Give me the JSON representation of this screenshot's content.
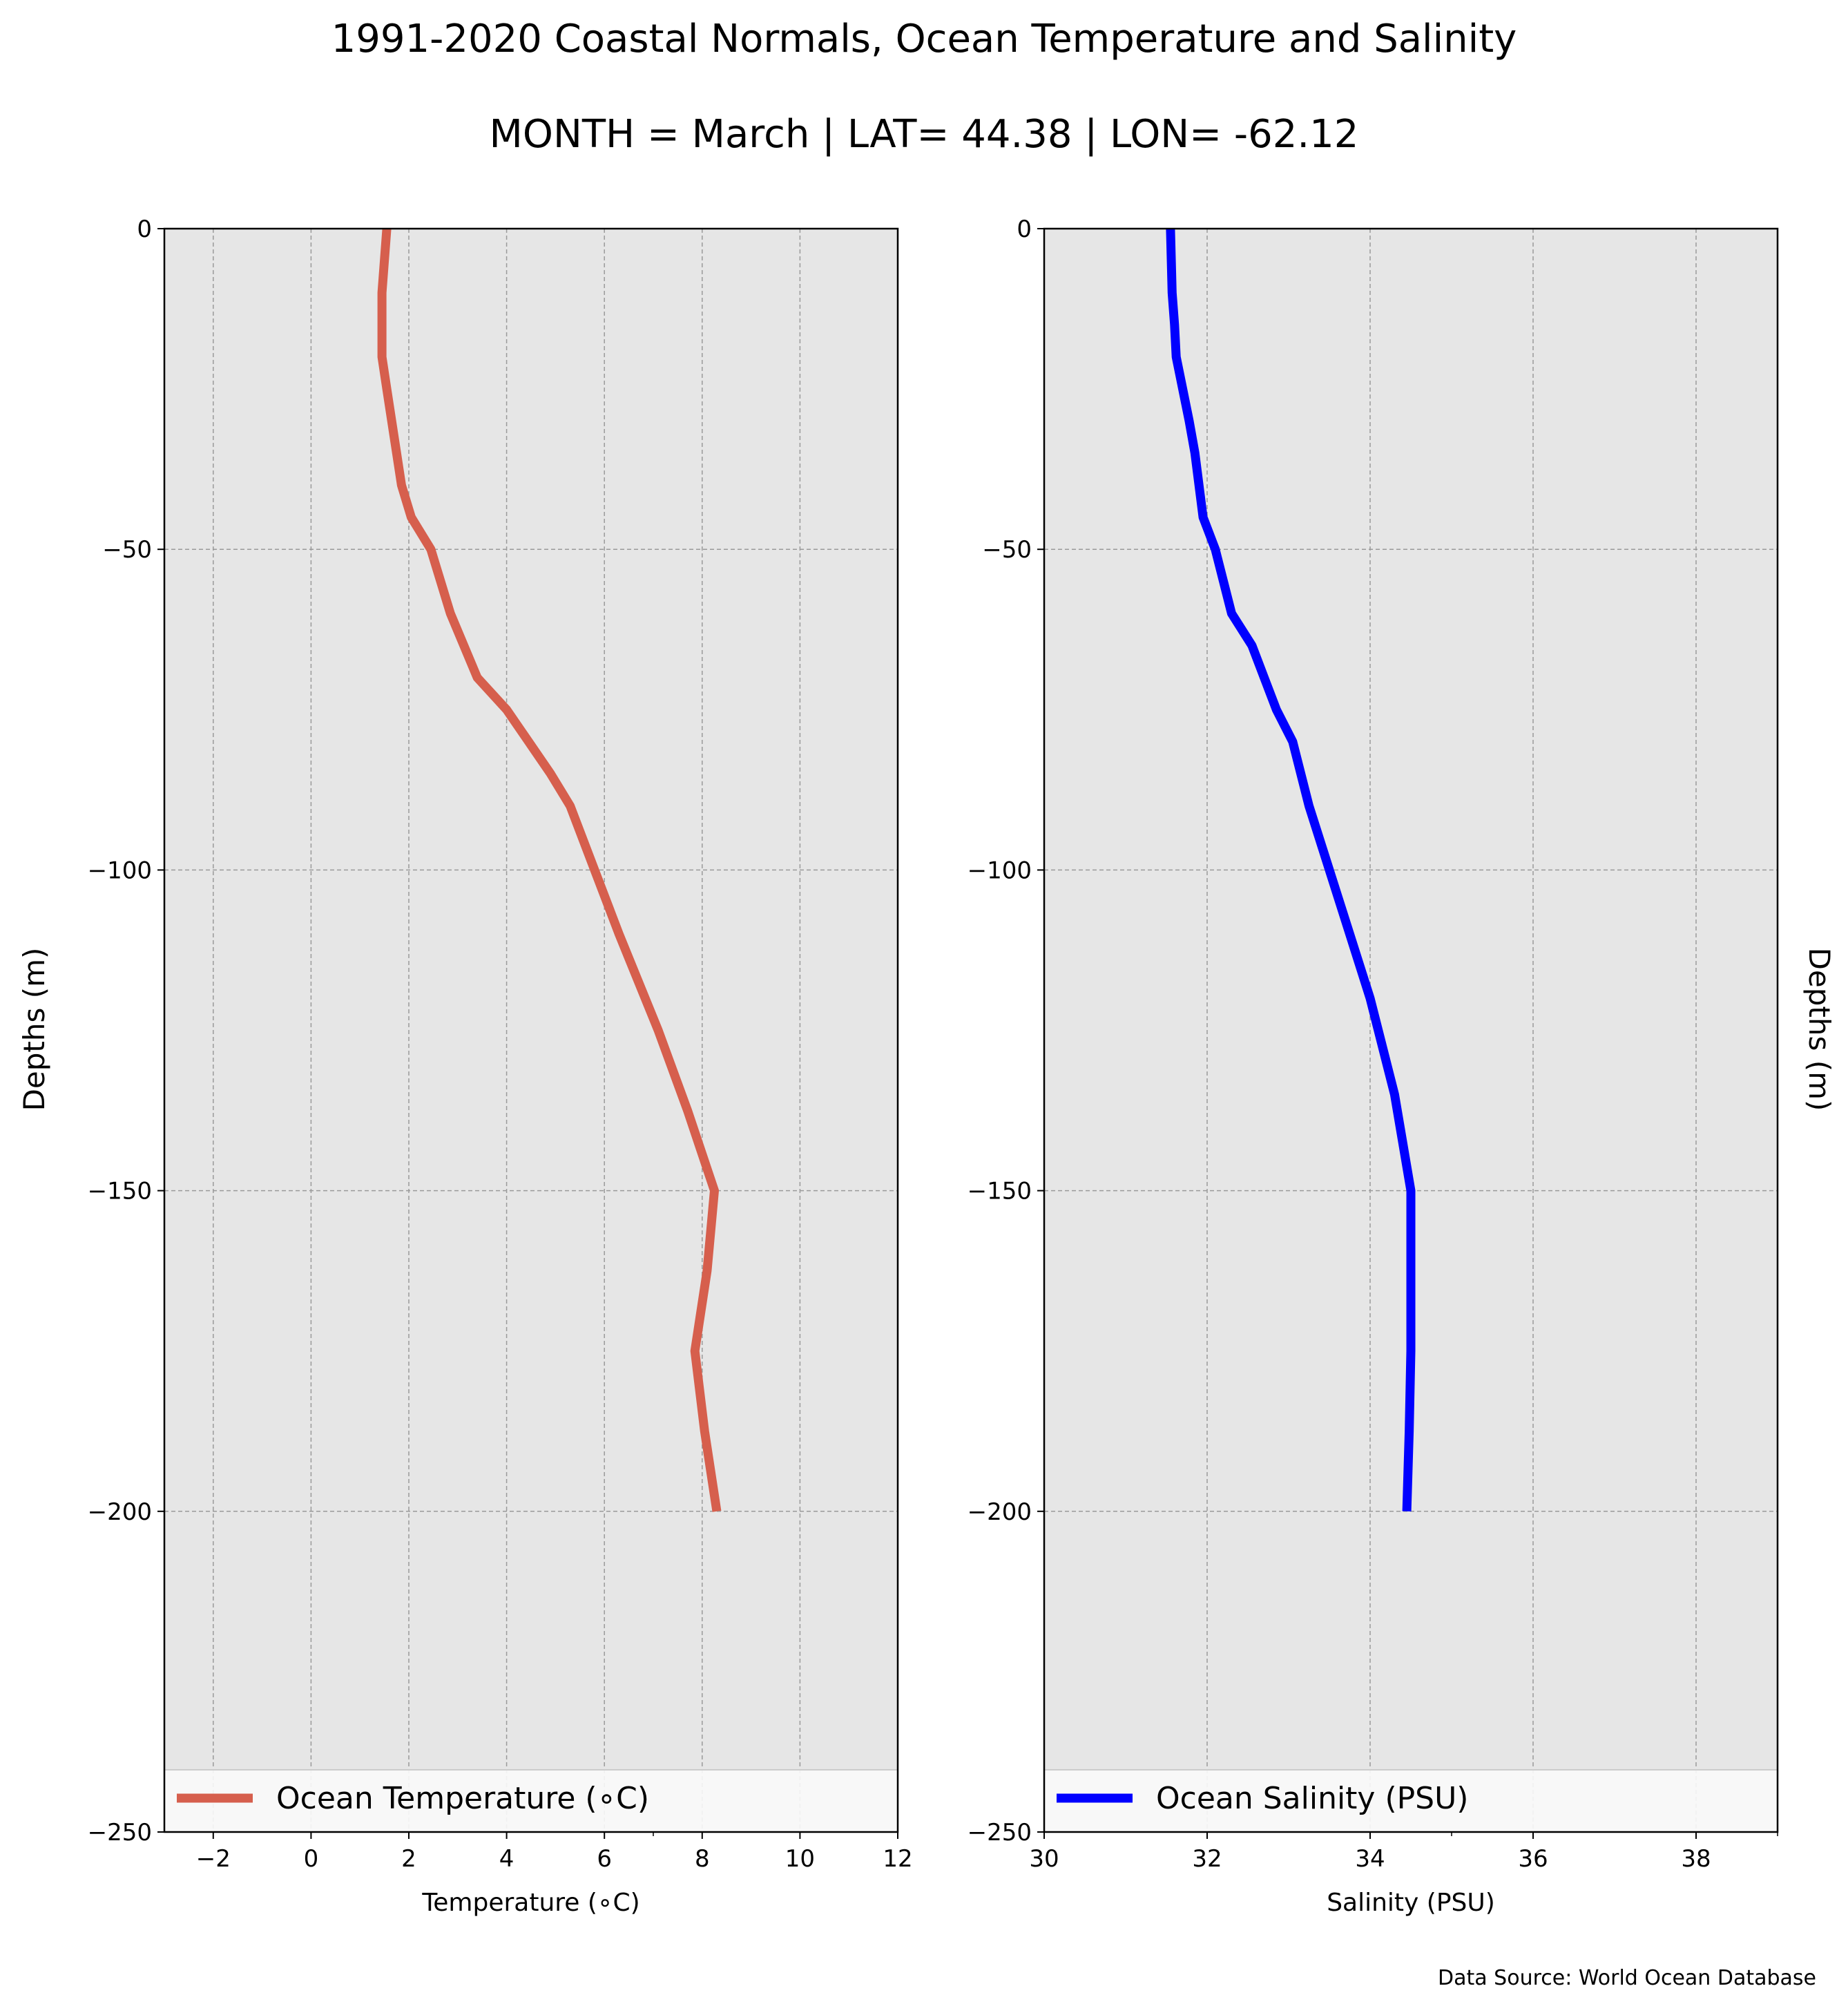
{
  "titles": {
    "line1": "1991-2020 Coastal Normals, Ocean Temperature and Salinity",
    "line2": "MONTH = March | LAT= 44.38 | LON= -62.12"
  },
  "source_note": "Data Source: World Ocean Database",
  "colors": {
    "temperature": "#d65f4d",
    "salinity": "#0000ff",
    "plot_bg": "#e6e6e6",
    "grid": "#9a9a9a"
  },
  "chart_data": [
    {
      "type": "line",
      "xlabel": "Temperature ($^\\circ$C)",
      "xlabel_display": "Temperature (∘C)",
      "ylabel": "Depths (m)",
      "xlim": [
        -3,
        12
      ],
      "ylim": [
        -250,
        0
      ],
      "xticks": [
        -2,
        0,
        2,
        4,
        6,
        8,
        10,
        12
      ],
      "xtick_labels": [
        "−2",
        "0",
        "2",
        "4",
        "6",
        "8",
        "10",
        "12"
      ],
      "xminor_ticks": [
        7
      ],
      "yticks": [
        0,
        -50,
        -100,
        -150,
        -200,
        -250
      ],
      "ytick_labels": [
        "0",
        "−50",
        "−100",
        "−150",
        "−200",
        "−250"
      ],
      "grid": true,
      "legend_position": "bottom",
      "series": [
        {
          "name": "Ocean Temperature (∘C)",
          "x": [
            1.55,
            1.5,
            1.45,
            1.45,
            1.45,
            1.55,
            1.65,
            1.75,
            1.85,
            2.05,
            2.45,
            2.85,
            3.4,
            4.0,
            4.45,
            4.9,
            5.3,
            5.8,
            6.3,
            7.1,
            7.7,
            8.25,
            8.1,
            7.85,
            8.05,
            8.3
          ],
          "y": [
            0,
            -5,
            -10,
            -15,
            -20,
            -25,
            -30,
            -35,
            -40,
            -45,
            -50,
            -60,
            -70,
            -75,
            -80,
            -85,
            -90,
            -100,
            -110,
            -125,
            -137.5,
            -150,
            -162.5,
            -175,
            -187.5,
            -200
          ]
        }
      ]
    },
    {
      "type": "line",
      "xlabel": "Salinity (PSU)",
      "ylabel": "Depths (m)",
      "xlim": [
        30,
        39
      ],
      "ylim": [
        -250,
        0
      ],
      "xticks": [
        30,
        32,
        34,
        36,
        38
      ],
      "xtick_labels": [
        "30",
        "32",
        "34",
        "36",
        "38"
      ],
      "xminor_ticks": [
        35,
        39
      ],
      "yticks": [
        0,
        -50,
        -100,
        -150,
        -200,
        -250
      ],
      "ytick_labels": [
        "0",
        "−50",
        "−100",
        "−150",
        "−200",
        "−250"
      ],
      "grid": true,
      "legend_position": "bottom",
      "series": [
        {
          "name": "Ocean Salinity (PSU)",
          "x": [
            31.55,
            31.57,
            31.6,
            31.62,
            31.7,
            31.78,
            31.85,
            31.95,
            32.1,
            32.3,
            32.55,
            32.7,
            32.85,
            33.05,
            33.25,
            33.5,
            33.75,
            34.0,
            34.3,
            34.5,
            34.5,
            34.5,
            34.48,
            34.45
          ],
          "y": [
            0,
            -10,
            -15,
            -20,
            -25,
            -30,
            -35,
            -45,
            -50,
            -60,
            -65,
            -70,
            -75,
            -80,
            -90,
            -100,
            -110,
            -120,
            -135,
            -150,
            -162.5,
            -175,
            -187.5,
            -200
          ]
        }
      ]
    }
  ]
}
